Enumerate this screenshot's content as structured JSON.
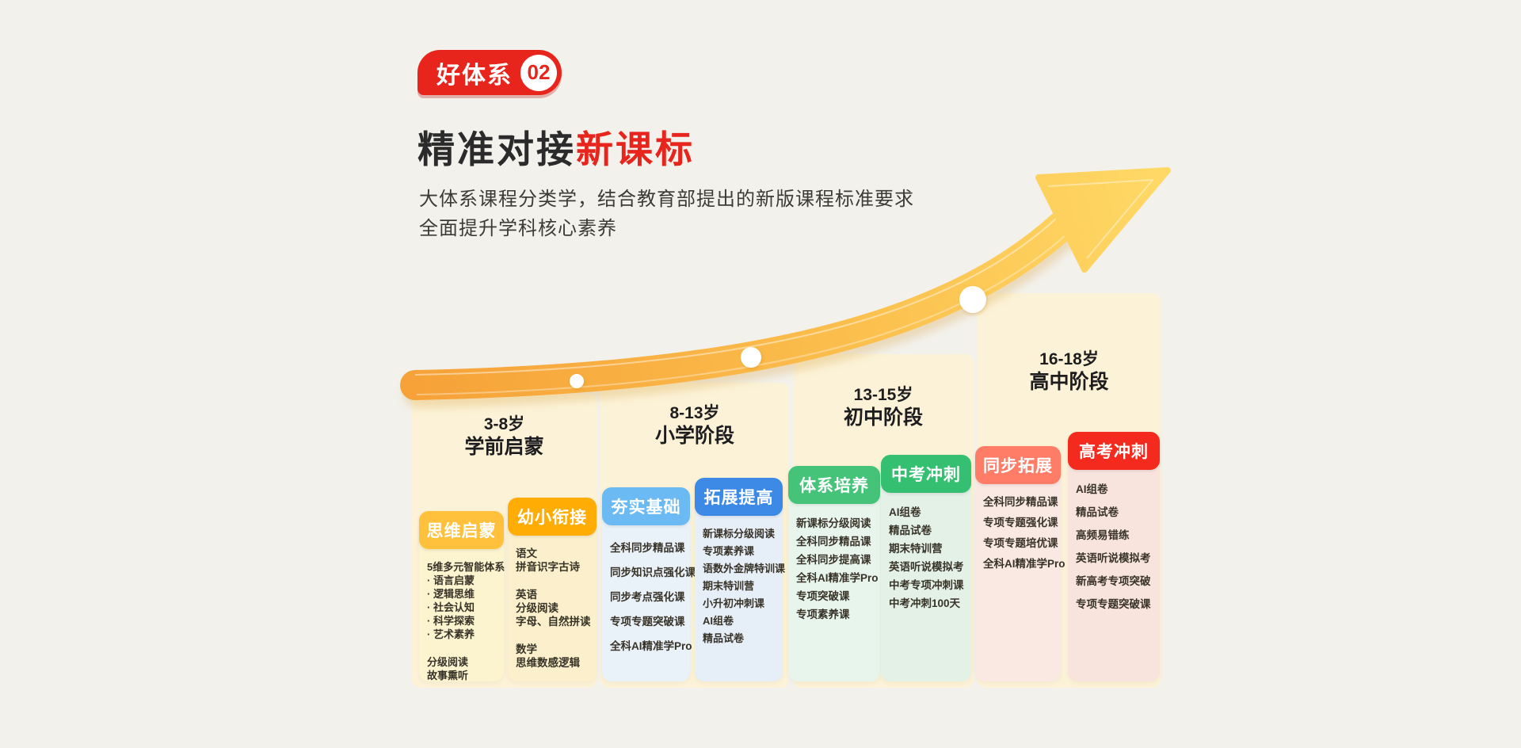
{
  "page": {
    "background": "#F2F1EC"
  },
  "badge": {
    "label": "好体系",
    "number": "02",
    "color": "#E8251C"
  },
  "title": {
    "prefix": "精准对接",
    "highlight": "新课标",
    "highlight_color": "#E8251C",
    "text_color": "#2B2B2B"
  },
  "subtitle": {
    "line1": "大体系课程分类学，结合教育部提出的新版课程标准要求",
    "line2": "全面提升学科核心素养"
  },
  "stages": [
    {
      "age": "3-8岁",
      "name": "学前启蒙"
    },
    {
      "age": "8-13岁",
      "name": "小学阶段"
    },
    {
      "age": "13-15岁",
      "name": "初中阶段"
    },
    {
      "age": "16-18岁",
      "name": "高中阶段"
    }
  ],
  "panel_color": "#FBF2D7",
  "arrow": {
    "gradient_from": "#F6A238",
    "gradient_mid": "#FBBE4C",
    "gradient_to": "#FFD865",
    "dot_color": "#FFFFFF"
  },
  "columns": [
    {
      "header": "思维启蒙",
      "header_color": "#FFC13B",
      "body_color": "#FCF3CF",
      "groups": [
        [
          "5维多元智能体系",
          "· 语言启蒙",
          "· 逻辑思维",
          "· 社会认知",
          "· 科学探索",
          "· 艺术素养"
        ],
        [
          "分级阅读",
          "故事熏听"
        ]
      ]
    },
    {
      "header": "幼小衔接",
      "header_color": "#FFAD05",
      "body_color": "#FBF0CB",
      "groups": [
        [
          "语文",
          "拼音识字古诗"
        ],
        [
          "英语",
          "分级阅读",
          "字母、自然拼读"
        ],
        [
          "数学",
          "思维数感逻辑"
        ]
      ]
    },
    {
      "header": "夯实基础",
      "header_color": "#6CBAF3",
      "body_color": "#E9F1F9",
      "groups": [
        [
          "全科同步精品课"
        ],
        [
          "同步知识点强化课"
        ],
        [
          "同步考点强化课"
        ],
        [
          "专项专题突破课"
        ],
        [
          "全科AI精准学Pro"
        ]
      ]
    },
    {
      "header": "拓展提高",
      "header_color": "#3D89E6",
      "body_color": "#E6EEF7",
      "groups": [
        [
          "新课标分级阅读"
        ],
        [
          "专项素养课"
        ],
        [
          "语数外金牌特训课"
        ],
        [
          "期末特训营"
        ],
        [
          "小升初冲刺课"
        ],
        [
          "AI组卷"
        ],
        [
          "精品试卷"
        ]
      ]
    },
    {
      "header": "体系培养",
      "header_color": "#45C479",
      "body_color": "#E8F5EC",
      "groups": [
        [
          "新课标分级阅读"
        ],
        [
          "全科同步精品课"
        ],
        [
          "全科同步提高课"
        ],
        [
          "全科AI精准学Pro"
        ],
        [
          "专项突破课"
        ],
        [
          "专项素养课"
        ]
      ]
    },
    {
      "header": "中考冲刺",
      "header_color": "#35C071",
      "body_color": "#E4F1E7",
      "groups": [
        [
          "AI组卷"
        ],
        [
          "精品试卷"
        ],
        [
          "期末特训营"
        ],
        [
          "英语听说模拟考"
        ],
        [
          "中考专项冲刺课"
        ],
        [
          "中考冲刺100天"
        ]
      ]
    },
    {
      "header": "同步拓展",
      "header_color": "#FF7D66",
      "body_color": "#F9E9E2",
      "groups": [
        [
          "全科同步精品课"
        ],
        [
          "专项专题强化课"
        ],
        [
          "专项专题培优课"
        ],
        [
          "全科AI精准学Pro"
        ]
      ]
    },
    {
      "header": "高考冲刺",
      "header_color": "#F52A1E",
      "body_color": "#F8E3DD",
      "groups": [
        [
          "AI组卷"
        ],
        [
          "精品试卷"
        ],
        [
          "高频易错练"
        ],
        [
          "英语听说模拟考"
        ],
        [
          "新高考专项突破"
        ],
        [
          "专项专题突破课"
        ]
      ]
    }
  ]
}
